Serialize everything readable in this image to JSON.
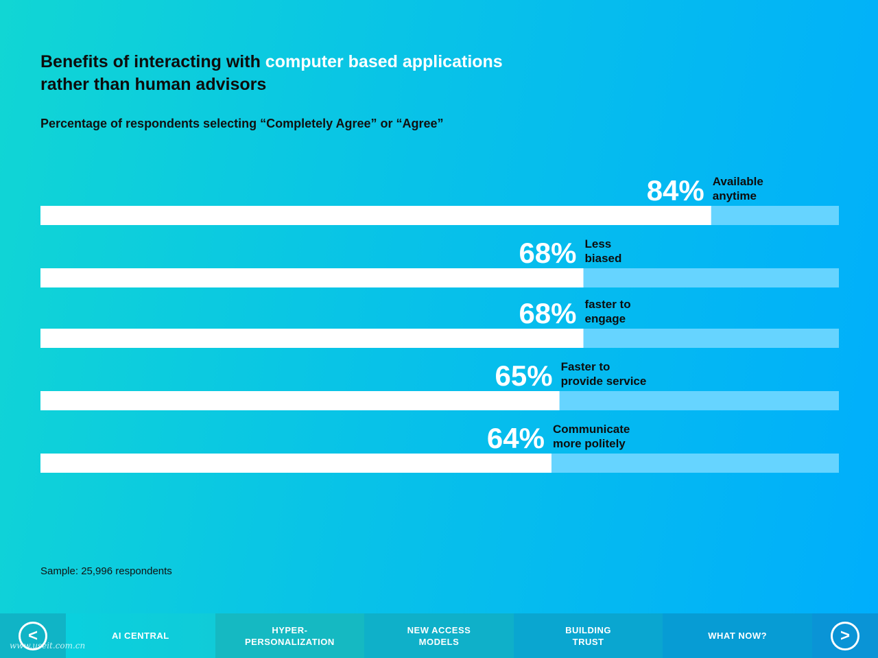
{
  "title": {
    "part1": "Benefits of interacting with ",
    "highlight": "computer based applications",
    "part2": "rather than human advisors"
  },
  "subtitle": "Percentage of respondents selecting “Completely Agree” or “Agree”",
  "chart_data": {
    "type": "bar",
    "orientation": "horizontal",
    "categories": [
      [
        "Available",
        "anytime"
      ],
      [
        "Less",
        "biased"
      ],
      [
        "faster to",
        "engage"
      ],
      [
        "Faster to",
        "provide service"
      ],
      [
        "Communicate",
        "more politely"
      ]
    ],
    "values": [
      84,
      68,
      68,
      65,
      64
    ],
    "data_labels": [
      "84%",
      "68%",
      "68%",
      "65%",
      "64%"
    ],
    "xlim": [
      0,
      100
    ],
    "grid": false,
    "colors": {
      "fill": "#ffffff",
      "track": "#66d4ff"
    }
  },
  "sample": "Sample: 25,996 respondents",
  "nav": {
    "prev_symbol": "<",
    "next_symbol": ">",
    "tabs": [
      {
        "label": "AI CENTRAL",
        "active": true
      },
      {
        "label": "HYPER-\nPERSONALIZATION",
        "active": false
      },
      {
        "label": "NEW ACCESS\nMODELS",
        "active": false
      },
      {
        "label": "BUILDING\nTRUST",
        "active": false
      },
      {
        "label": "WHAT NOW?",
        "active": false
      }
    ]
  },
  "watermark": "www.useit.com.cn"
}
